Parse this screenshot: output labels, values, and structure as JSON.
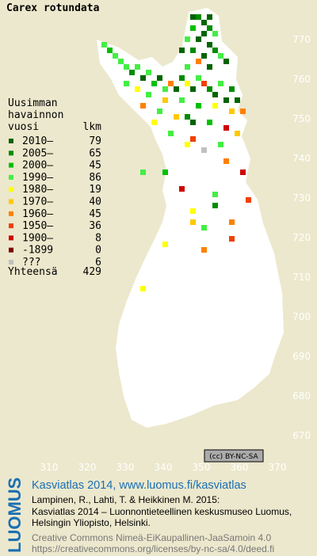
{
  "title": "Carex rotundata",
  "legend": {
    "heading": [
      "Uusimman",
      "havainnon",
      "vuosi"
    ],
    "count_heading": "lkm",
    "rows": [
      {
        "label": "2010–",
        "count": 79,
        "color": "#006400"
      },
      {
        "label": "2005–",
        "count": 65,
        "color": "#008c00"
      },
      {
        "label": "2000–",
        "count": 45,
        "color": "#00c000"
      },
      {
        "label": "1990–",
        "count": 86,
        "color": "#44ee44"
      },
      {
        "label": "1980–",
        "count": 19,
        "color": "#ffff00"
      },
      {
        "label": "1970–",
        "count": 40,
        "color": "#ffc800"
      },
      {
        "label": "1960–",
        "count": 45,
        "color": "#ff8000"
      },
      {
        "label": "1950–",
        "count": 36,
        "color": "#f04000"
      },
      {
        "label": "1900–",
        "count": 8,
        "color": "#d00000"
      },
      {
        "label": "-1899",
        "count": 0,
        "color": "#800000"
      },
      {
        "label": "???",
        "count": 6,
        "color": "#c0c0c0"
      }
    ],
    "total_label": "Yhteensä",
    "total": 429
  },
  "x_ticks": [
    310,
    320,
    330,
    340,
    350,
    360,
    370
  ],
  "y_ticks": [
    670,
    680,
    690,
    700,
    710,
    720,
    730,
    740,
    750,
    760,
    770
  ],
  "license_badge": "(cc) BY-NC-SA",
  "footer": {
    "logo": "LUOMUS",
    "title": "Kasviatlas 2014, www.luomus.fi/kasviatlas",
    "citation": [
      "Lampinen, R., Lahti, T. & Heikkinen M. 2015:",
      "Kasviatlas 2014 – Luonnontieteellinen keskusmuseo Luomus,",
      "Helsingin Yliopisto, Helsinki."
    ],
    "license_text": [
      "Creative Commons Nimeä-EiKaupallinen-JaaSamoin 4.0",
      "https://creativecommons.org/licenses/by-nc-sa/4.0/deed.fi"
    ]
  }
}
